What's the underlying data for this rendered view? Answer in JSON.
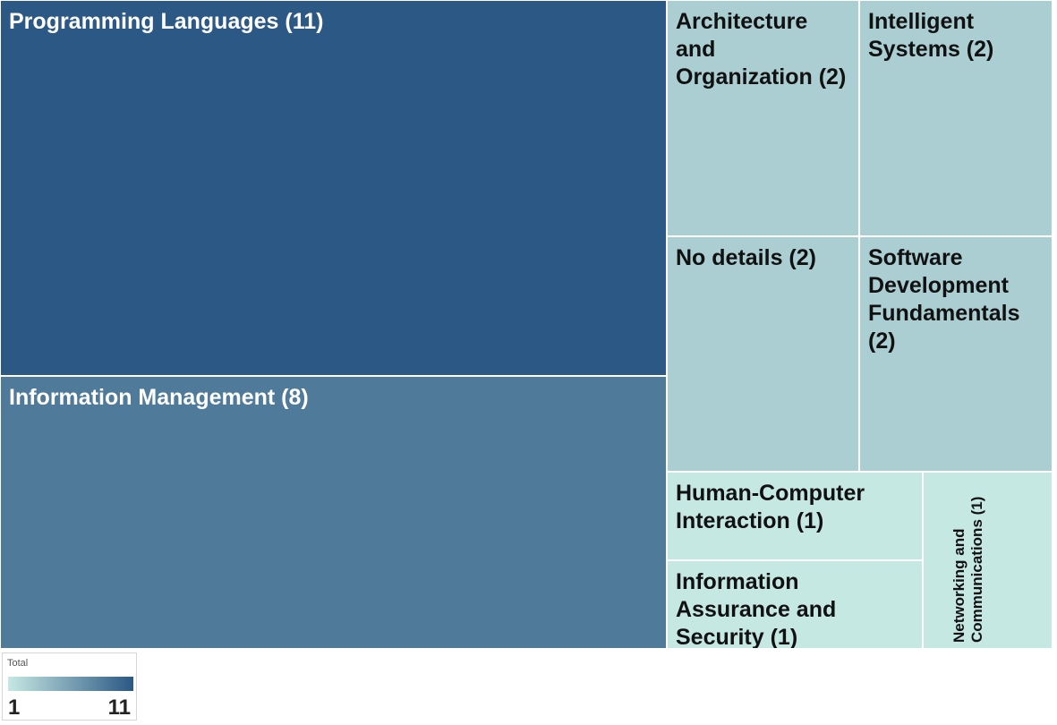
{
  "chart_data": {
    "type": "treemap",
    "color_scale": {
      "title": "Total",
      "min": 1,
      "max": 11,
      "min_color": "#c6e8e3",
      "max_color": "#2b5884"
    },
    "items": [
      {
        "name": "Programming Languages",
        "value": 11,
        "label": "Programming Languages (11)"
      },
      {
        "name": "Information Management",
        "value": 8,
        "label": "Information Management (8)"
      },
      {
        "name": "Architecture and Organization",
        "value": 2,
        "label": "Architecture and Organization (2)"
      },
      {
        "name": "Intelligent Systems",
        "value": 2,
        "label": "Intelligent Systems (2)"
      },
      {
        "name": "No details",
        "value": 2,
        "label": "No details (2)"
      },
      {
        "name": "Software Development Fundamentals",
        "value": 2,
        "label": "Software Development Fundamentals (2)"
      },
      {
        "name": "Human-Computer Interaction",
        "value": 1,
        "label": "Human-Computer Interaction (1)"
      },
      {
        "name": "Information Assurance and Security",
        "value": 1,
        "label": "Information Assurance and Security (1)"
      },
      {
        "name": "Networking and Communications",
        "value": 1,
        "label": "Networking and Communications (1)"
      }
    ]
  },
  "legend": {
    "title": "Total",
    "min_label": "1",
    "max_label": "11"
  }
}
